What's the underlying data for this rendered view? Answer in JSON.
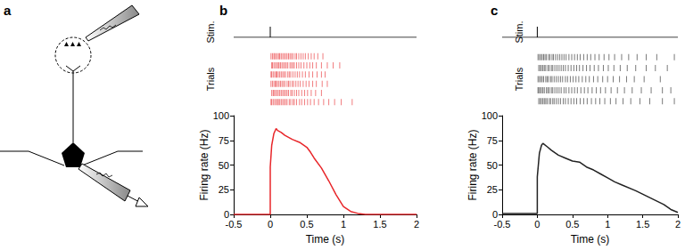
{
  "figure": {
    "panel_label": "a"
  },
  "chart_data": [
    {
      "type": "line",
      "title": "b",
      "annotations": {
        "stimulus": "Stim.",
        "raster": "Trials"
      },
      "stim_time": 0,
      "trials": [
        [
          0.01,
          0.03,
          0.05,
          0.06,
          0.08,
          0.1,
          0.12,
          0.13,
          0.15,
          0.17,
          0.19,
          0.21,
          0.23,
          0.25,
          0.27,
          0.29,
          0.31,
          0.34,
          0.36,
          0.39,
          0.42,
          0.45,
          0.48,
          0.52,
          0.56,
          0.6,
          0.65,
          0.72
        ],
        [
          0.02,
          0.03,
          0.05,
          0.07,
          0.09,
          0.11,
          0.12,
          0.14,
          0.16,
          0.18,
          0.2,
          0.22,
          0.24,
          0.27,
          0.29,
          0.31,
          0.33,
          0.36,
          0.39,
          0.42,
          0.46,
          0.5,
          0.54,
          0.58,
          0.63,
          0.7,
          0.78,
          0.86,
          0.95
        ],
        [
          0.01,
          0.02,
          0.04,
          0.06,
          0.08,
          0.09,
          0.11,
          0.13,
          0.15,
          0.17,
          0.19,
          0.21,
          0.24,
          0.26,
          0.28,
          0.31,
          0.34,
          0.37,
          0.4,
          0.44,
          0.48,
          0.53,
          0.58,
          0.64,
          0.7,
          0.75
        ],
        [
          0.01,
          0.03,
          0.05,
          0.07,
          0.08,
          0.1,
          0.12,
          0.14,
          0.16,
          0.18,
          0.2,
          0.23,
          0.25,
          0.27,
          0.3,
          0.32,
          0.35,
          0.38,
          0.41,
          0.45,
          0.49,
          0.53,
          0.58,
          0.63,
          0.71,
          0.78
        ],
        [
          0.02,
          0.04,
          0.05,
          0.07,
          0.09,
          0.11,
          0.13,
          0.15,
          0.17,
          0.19,
          0.21,
          0.23,
          0.25,
          0.28,
          0.3,
          0.33,
          0.36,
          0.39,
          0.43,
          0.47,
          0.51,
          0.56,
          0.62,
          0.7
        ],
        [
          0.01,
          0.02,
          0.04,
          0.06,
          0.08,
          0.1,
          0.11,
          0.13,
          0.15,
          0.17,
          0.19,
          0.21,
          0.23,
          0.26,
          0.28,
          0.31,
          0.33,
          0.36,
          0.4,
          0.43,
          0.47,
          0.51,
          0.55,
          0.6,
          0.66,
          0.73,
          0.8,
          0.88,
          0.97,
          1.12
        ]
      ],
      "x": [
        -0.5,
        0,
        0,
        0.02,
        0.05,
        0.08,
        0.1,
        0.15,
        0.2,
        0.3,
        0.4,
        0.5,
        0.55,
        0.6,
        0.7,
        0.8,
        0.9,
        1.0,
        1.1,
        1.2,
        1.3,
        1.5,
        2
      ],
      "values": [
        0,
        0,
        48,
        70,
        82,
        87,
        85,
        83,
        80,
        76,
        73,
        68,
        63,
        57,
        47,
        34,
        20,
        8,
        3,
        1,
        0,
        0,
        0
      ],
      "color": "#e8262a",
      "xlabel": "Time (s)",
      "ylabel": "Firing rate (Hz)",
      "xlim": [
        -0.5,
        2
      ],
      "xticks": [
        -0.5,
        0,
        0.5,
        1,
        1.5,
        2
      ],
      "ylim": [
        0,
        100
      ],
      "yticks": [
        0,
        25,
        50,
        75,
        100
      ],
      "grid": false
    },
    {
      "type": "line",
      "title": "c",
      "annotations": {
        "stimulus": "Stim.",
        "raster": "Trials"
      },
      "stim_time": 0,
      "trials": [
        [
          0.01,
          0.03,
          0.05,
          0.07,
          0.09,
          0.11,
          0.13,
          0.16,
          0.18,
          0.21,
          0.23,
          0.26,
          0.29,
          0.32,
          0.35,
          0.38,
          0.41,
          0.45,
          0.49,
          0.53,
          0.57,
          0.61,
          0.66,
          0.71,
          0.76,
          0.82,
          0.88,
          0.95,
          1.02,
          1.1,
          1.2,
          1.3,
          1.42,
          1.55,
          1.7,
          1.95
        ],
        [
          0.02,
          0.04,
          0.06,
          0.08,
          0.1,
          0.12,
          0.15,
          0.17,
          0.2,
          0.22,
          0.25,
          0.28,
          0.31,
          0.34,
          0.37,
          0.4,
          0.44,
          0.48,
          0.52,
          0.56,
          0.6,
          0.65,
          0.7,
          0.75,
          0.81,
          0.87,
          0.94,
          1.01,
          1.09,
          1.18,
          1.28,
          1.4,
          1.55,
          1.68,
          1.85
        ],
        [
          0.01,
          0.03,
          0.05,
          0.07,
          0.09,
          0.12,
          0.14,
          0.16,
          0.19,
          0.21,
          0.24,
          0.27,
          0.3,
          0.33,
          0.36,
          0.4,
          0.43,
          0.47,
          0.51,
          0.55,
          0.59,
          0.64,
          0.69,
          0.74,
          0.8,
          0.86,
          0.93,
          1.0,
          1.08,
          1.17,
          1.27,
          1.38,
          1.52,
          1.75
        ],
        [
          0.01,
          0.02,
          0.04,
          0.06,
          0.08,
          0.1,
          0.13,
          0.15,
          0.17,
          0.2,
          0.22,
          0.25,
          0.28,
          0.31,
          0.34,
          0.38,
          0.41,
          0.45,
          0.49,
          0.53,
          0.57,
          0.62,
          0.67,
          0.72,
          0.78,
          0.84,
          0.9,
          0.97,
          1.05,
          1.14,
          1.24,
          1.35,
          1.48,
          1.62,
          1.78,
          1.9
        ],
        [
          0.02,
          0.04,
          0.06,
          0.08,
          0.1,
          0.12,
          0.14,
          0.17,
          0.19,
          0.22,
          0.24,
          0.27,
          0.3,
          0.33,
          0.37,
          0.4,
          0.44,
          0.48,
          0.52,
          0.56,
          0.61,
          0.66,
          0.71,
          0.77,
          0.83,
          0.89,
          0.96,
          1.04,
          1.12,
          1.22,
          1.33,
          1.46,
          1.6,
          1.78,
          1.95
        ]
      ],
      "x": [
        -0.5,
        -0.3,
        -0.1,
        0,
        0,
        0.03,
        0.06,
        0.08,
        0.15,
        0.2,
        0.3,
        0.4,
        0.5,
        0.6,
        0.7,
        0.8,
        0.9,
        1.0,
        1.1,
        1.2,
        1.4,
        1.6,
        1.8,
        1.9,
        2
      ],
      "values": [
        1,
        1,
        1,
        1,
        38,
        62,
        70,
        72,
        68,
        65,
        60,
        57,
        54,
        53,
        48,
        45,
        41,
        37,
        33,
        30,
        24,
        17,
        10,
        5,
        2
      ],
      "color": "#222222",
      "xlabel": "Time (s)",
      "ylabel": "Firing rate (Hz)",
      "xlim": [
        -0.5,
        2
      ],
      "xticks": [
        -0.5,
        0,
        0.5,
        1,
        1.5,
        2
      ],
      "ylim": [
        0,
        100
      ],
      "yticks": [
        0,
        25,
        50,
        75,
        100
      ],
      "grid": false
    }
  ]
}
